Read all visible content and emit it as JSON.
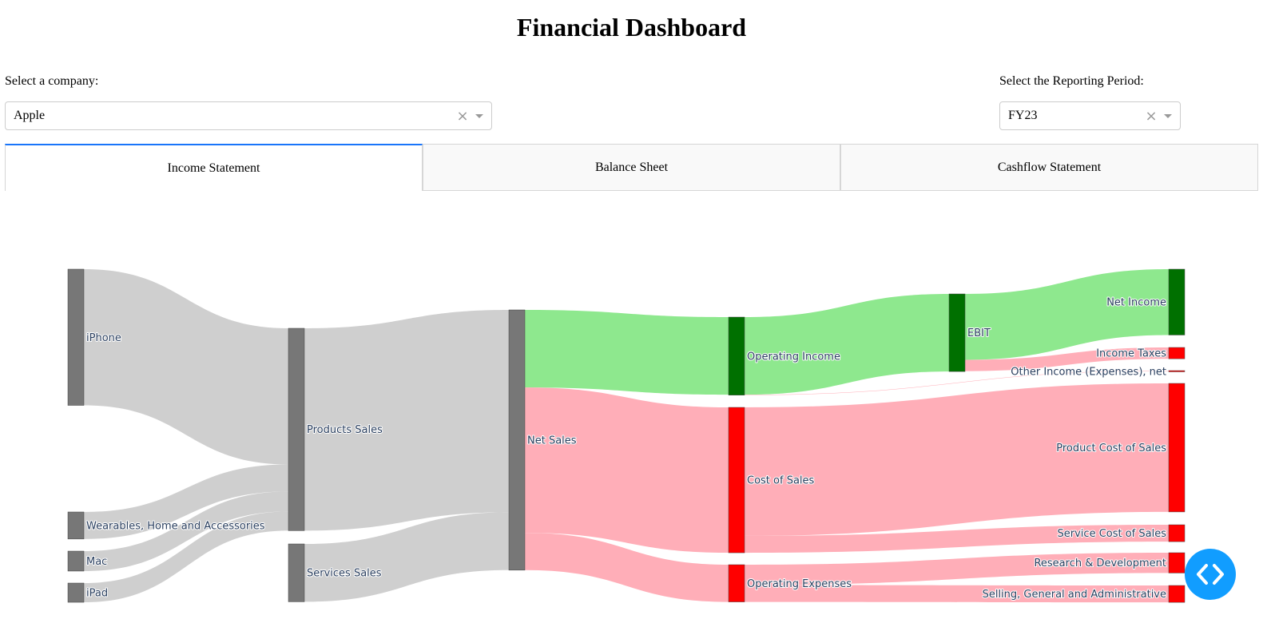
{
  "page": {
    "title": "Financial Dashboard"
  },
  "company": {
    "label": "Select a company:",
    "value": "Apple",
    "clear_icon": "close-icon",
    "arrow_icon": "caret-down-icon"
  },
  "period": {
    "label": "Select the Reporting Period:",
    "value": "FY23",
    "clear_icon": "close-icon",
    "arrow_icon": "caret-down-icon"
  },
  "tabs": [
    {
      "label": "Income Statement",
      "active": true
    },
    {
      "label": "Balance Sheet",
      "active": false
    },
    {
      "label": "Cashflow Statement",
      "active": false
    }
  ],
  "colors": {
    "accent": "#1975fa",
    "node_neutral": "#777777",
    "node_profit": "#007000",
    "node_cost": "#ff0000",
    "link_neutral": "#cccccc",
    "link_profit": "#88e788",
    "link_cost": "#ffaab4",
    "fab": "#119dff"
  },
  "chart_data": {
    "type": "sankey",
    "units": "USD billions",
    "nodes": [
      {
        "id": "iphone",
        "label": "iPhone",
        "column": 0,
        "color": "neutral"
      },
      {
        "id": "wearables",
        "label": "Wearables, Home and Accessories",
        "column": 0,
        "color": "neutral"
      },
      {
        "id": "mac",
        "label": "Mac",
        "column": 0,
        "color": "neutral"
      },
      {
        "id": "ipad",
        "label": "iPad",
        "column": 0,
        "color": "neutral"
      },
      {
        "id": "products",
        "label": "Products Sales",
        "column": 1,
        "color": "neutral"
      },
      {
        "id": "services",
        "label": "Services Sales",
        "column": 1,
        "color": "neutral"
      },
      {
        "id": "netsales",
        "label": "Net Sales",
        "column": 2,
        "color": "neutral"
      },
      {
        "id": "opincome",
        "label": "Operating Income",
        "column": 3,
        "color": "profit"
      },
      {
        "id": "cos",
        "label": "Cost of Sales",
        "column": 3,
        "color": "cost"
      },
      {
        "id": "opex",
        "label": "Operating Expenses",
        "column": 3,
        "color": "cost"
      },
      {
        "id": "ebit",
        "label": "EBIT",
        "column": 4,
        "color": "profit"
      },
      {
        "id": "netincome",
        "label": "Net Income",
        "column": 5,
        "color": "profit"
      },
      {
        "id": "taxes",
        "label": "Income Taxes",
        "column": 5,
        "color": "cost"
      },
      {
        "id": "other",
        "label": "Other Income (Expenses), net",
        "column": 5,
        "color": "cost"
      },
      {
        "id": "pcos",
        "label": "Product Cost of Sales",
        "column": 5,
        "color": "cost"
      },
      {
        "id": "scos",
        "label": "Service Cost of Sales",
        "column": 5,
        "color": "cost"
      },
      {
        "id": "rnd",
        "label": "Research & Development",
        "column": 5,
        "color": "cost"
      },
      {
        "id": "sga",
        "label": "Selling, General and Administrative",
        "column": 5,
        "color": "cost"
      }
    ],
    "links": [
      {
        "source": "iphone",
        "target": "products",
        "value": 200.6,
        "color": "neutral"
      },
      {
        "source": "wearables",
        "target": "products",
        "value": 39.8,
        "color": "neutral"
      },
      {
        "source": "mac",
        "target": "products",
        "value": 29.4,
        "color": "neutral"
      },
      {
        "source": "ipad",
        "target": "products",
        "value": 28.3,
        "color": "neutral"
      },
      {
        "source": "products",
        "target": "netsales",
        "value": 298.1,
        "color": "neutral"
      },
      {
        "source": "services",
        "target": "netsales",
        "value": 85.2,
        "color": "neutral"
      },
      {
        "source": "netsales",
        "target": "opincome",
        "value": 114.3,
        "color": "profit"
      },
      {
        "source": "netsales",
        "target": "cos",
        "value": 214.1,
        "color": "cost"
      },
      {
        "source": "netsales",
        "target": "opex",
        "value": 54.8,
        "color": "cost"
      },
      {
        "source": "opincome",
        "target": "ebit",
        "value": 114.3,
        "color": "profit"
      },
      {
        "source": "opincome",
        "target": "other",
        "value": 0.6,
        "color": "cost"
      },
      {
        "source": "ebit",
        "target": "netincome",
        "value": 97.0,
        "color": "profit"
      },
      {
        "source": "ebit",
        "target": "taxes",
        "value": 16.7,
        "color": "cost"
      },
      {
        "source": "cos",
        "target": "pcos",
        "value": 189.3,
        "color": "cost"
      },
      {
        "source": "cos",
        "target": "scos",
        "value": 24.9,
        "color": "cost"
      },
      {
        "source": "opex",
        "target": "rnd",
        "value": 29.9,
        "color": "cost"
      },
      {
        "source": "opex",
        "target": "sga",
        "value": 24.9,
        "color": "cost"
      }
    ]
  }
}
